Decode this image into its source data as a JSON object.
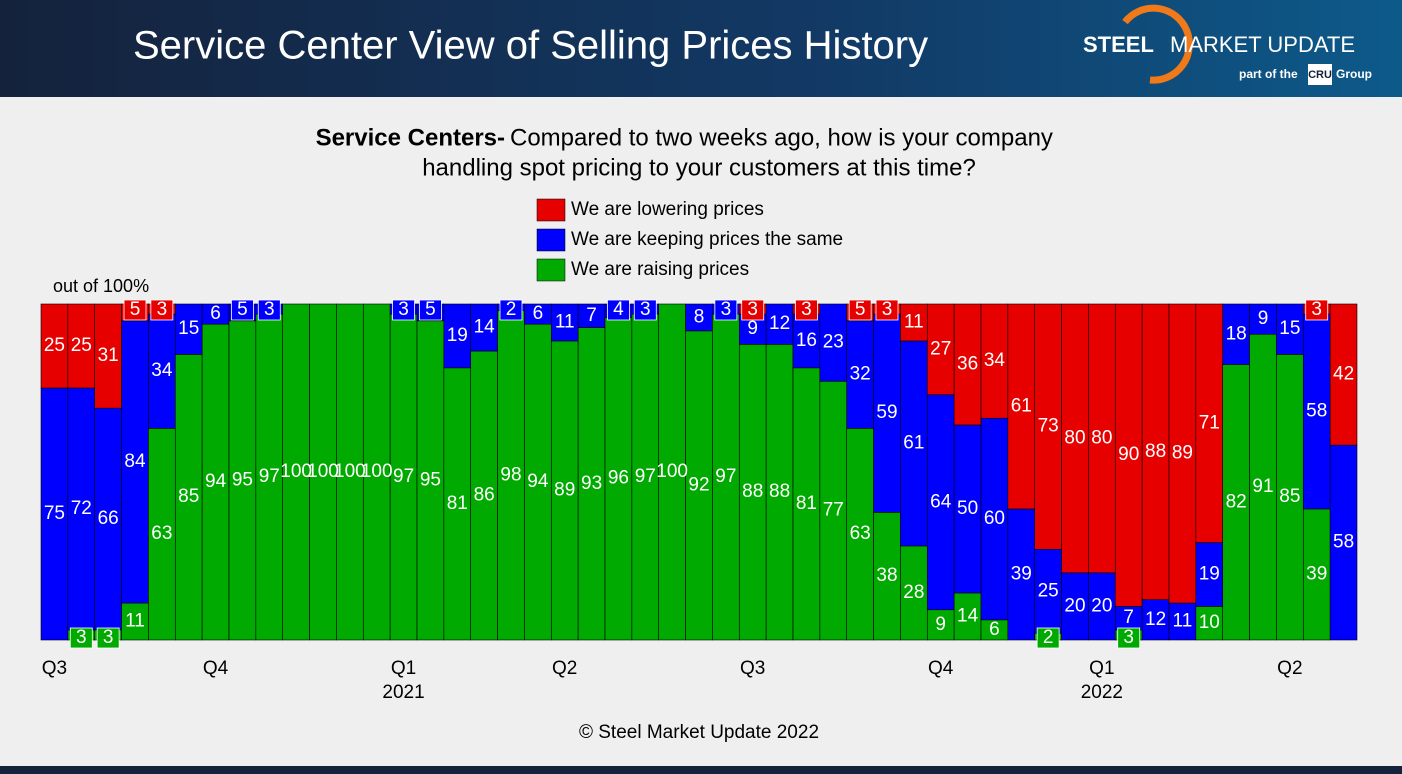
{
  "header": {
    "title": "Service Center View of Selling Prices History",
    "logo_bold": "STEEL",
    "logo_rest": "MARKET UPDATE",
    "logo_sub_left": "part of the",
    "logo_sub_box": "CRU",
    "logo_sub_right": "Group"
  },
  "chart_data": {
    "type": "bar",
    "stacked": true,
    "subtitle_bold": "Service Centers-",
    "subtitle": [
      "Compared to two weeks ago, how is your company",
      "handling spot pricing to your customers at this time?"
    ],
    "ylabel": "out of 100%",
    "categories": [
      "Q3",
      null,
      null,
      null,
      null,
      null,
      "Q4",
      null,
      null,
      null,
      null,
      null,
      null,
      "Q1",
      null,
      null,
      null,
      null,
      null,
      "Q2",
      null,
      null,
      null,
      null,
      null,
      null,
      "Q3",
      null,
      null,
      null,
      null,
      null,
      null,
      "Q4",
      null,
      null,
      null,
      null,
      null,
      "Q1",
      null,
      null,
      null,
      null,
      null,
      null,
      "Q2",
      null,
      null
    ],
    "category_years": [
      null,
      null,
      null,
      null,
      null,
      null,
      null,
      null,
      null,
      null,
      null,
      null,
      null,
      "2021",
      null,
      null,
      null,
      null,
      null,
      null,
      null,
      null,
      null,
      null,
      null,
      null,
      null,
      null,
      null,
      null,
      null,
      null,
      null,
      null,
      null,
      null,
      null,
      null,
      null,
      "2022",
      null,
      null,
      null,
      null,
      null,
      null,
      null,
      null,
      null
    ],
    "series": [
      {
        "name": "We are lowering prices",
        "color": "#e60000",
        "values": [
          25,
          25,
          31,
          5,
          3,
          0,
          0,
          0,
          0,
          0,
          0,
          0,
          0,
          0,
          0,
          0,
          0,
          0,
          0,
          0,
          0,
          0,
          0,
          0,
          0,
          0,
          3,
          0,
          3,
          0,
          5,
          3,
          11,
          27,
          36,
          34,
          61,
          73,
          80,
          80,
          90,
          88,
          89,
          71,
          0,
          0,
          0,
          3,
          42
        ]
      },
      {
        "name": "We are keeping prices the same",
        "color": "#0000ff",
        "values": [
          75,
          72,
          66,
          84,
          34,
          15,
          6,
          5,
          3,
          0,
          0,
          0,
          0,
          3,
          5,
          19,
          14,
          2,
          6,
          11,
          7,
          4,
          3,
          0,
          8,
          3,
          9,
          12,
          16,
          23,
          32,
          59,
          61,
          64,
          50,
          60,
          39,
          25,
          20,
          20,
          7,
          12,
          11,
          19,
          18,
          9,
          15,
          58,
          58
        ]
      },
      {
        "name": "We are raising prices",
        "color": "#00aa00",
        "values": [
          0,
          3,
          3,
          11,
          63,
          85,
          94,
          95,
          97,
          100,
          100,
          100,
          100,
          97,
          95,
          81,
          86,
          98,
          94,
          89,
          93,
          96,
          97,
          100,
          92,
          97,
          88,
          88,
          81,
          77,
          63,
          38,
          28,
          9,
          14,
          6,
          0,
          2,
          0,
          0,
          3,
          0,
          0,
          10,
          82,
          91,
          85,
          39,
          0
        ]
      }
    ],
    "ylim": [
      0,
      100
    ],
    "footer": "© Steel Market Update 2022"
  }
}
